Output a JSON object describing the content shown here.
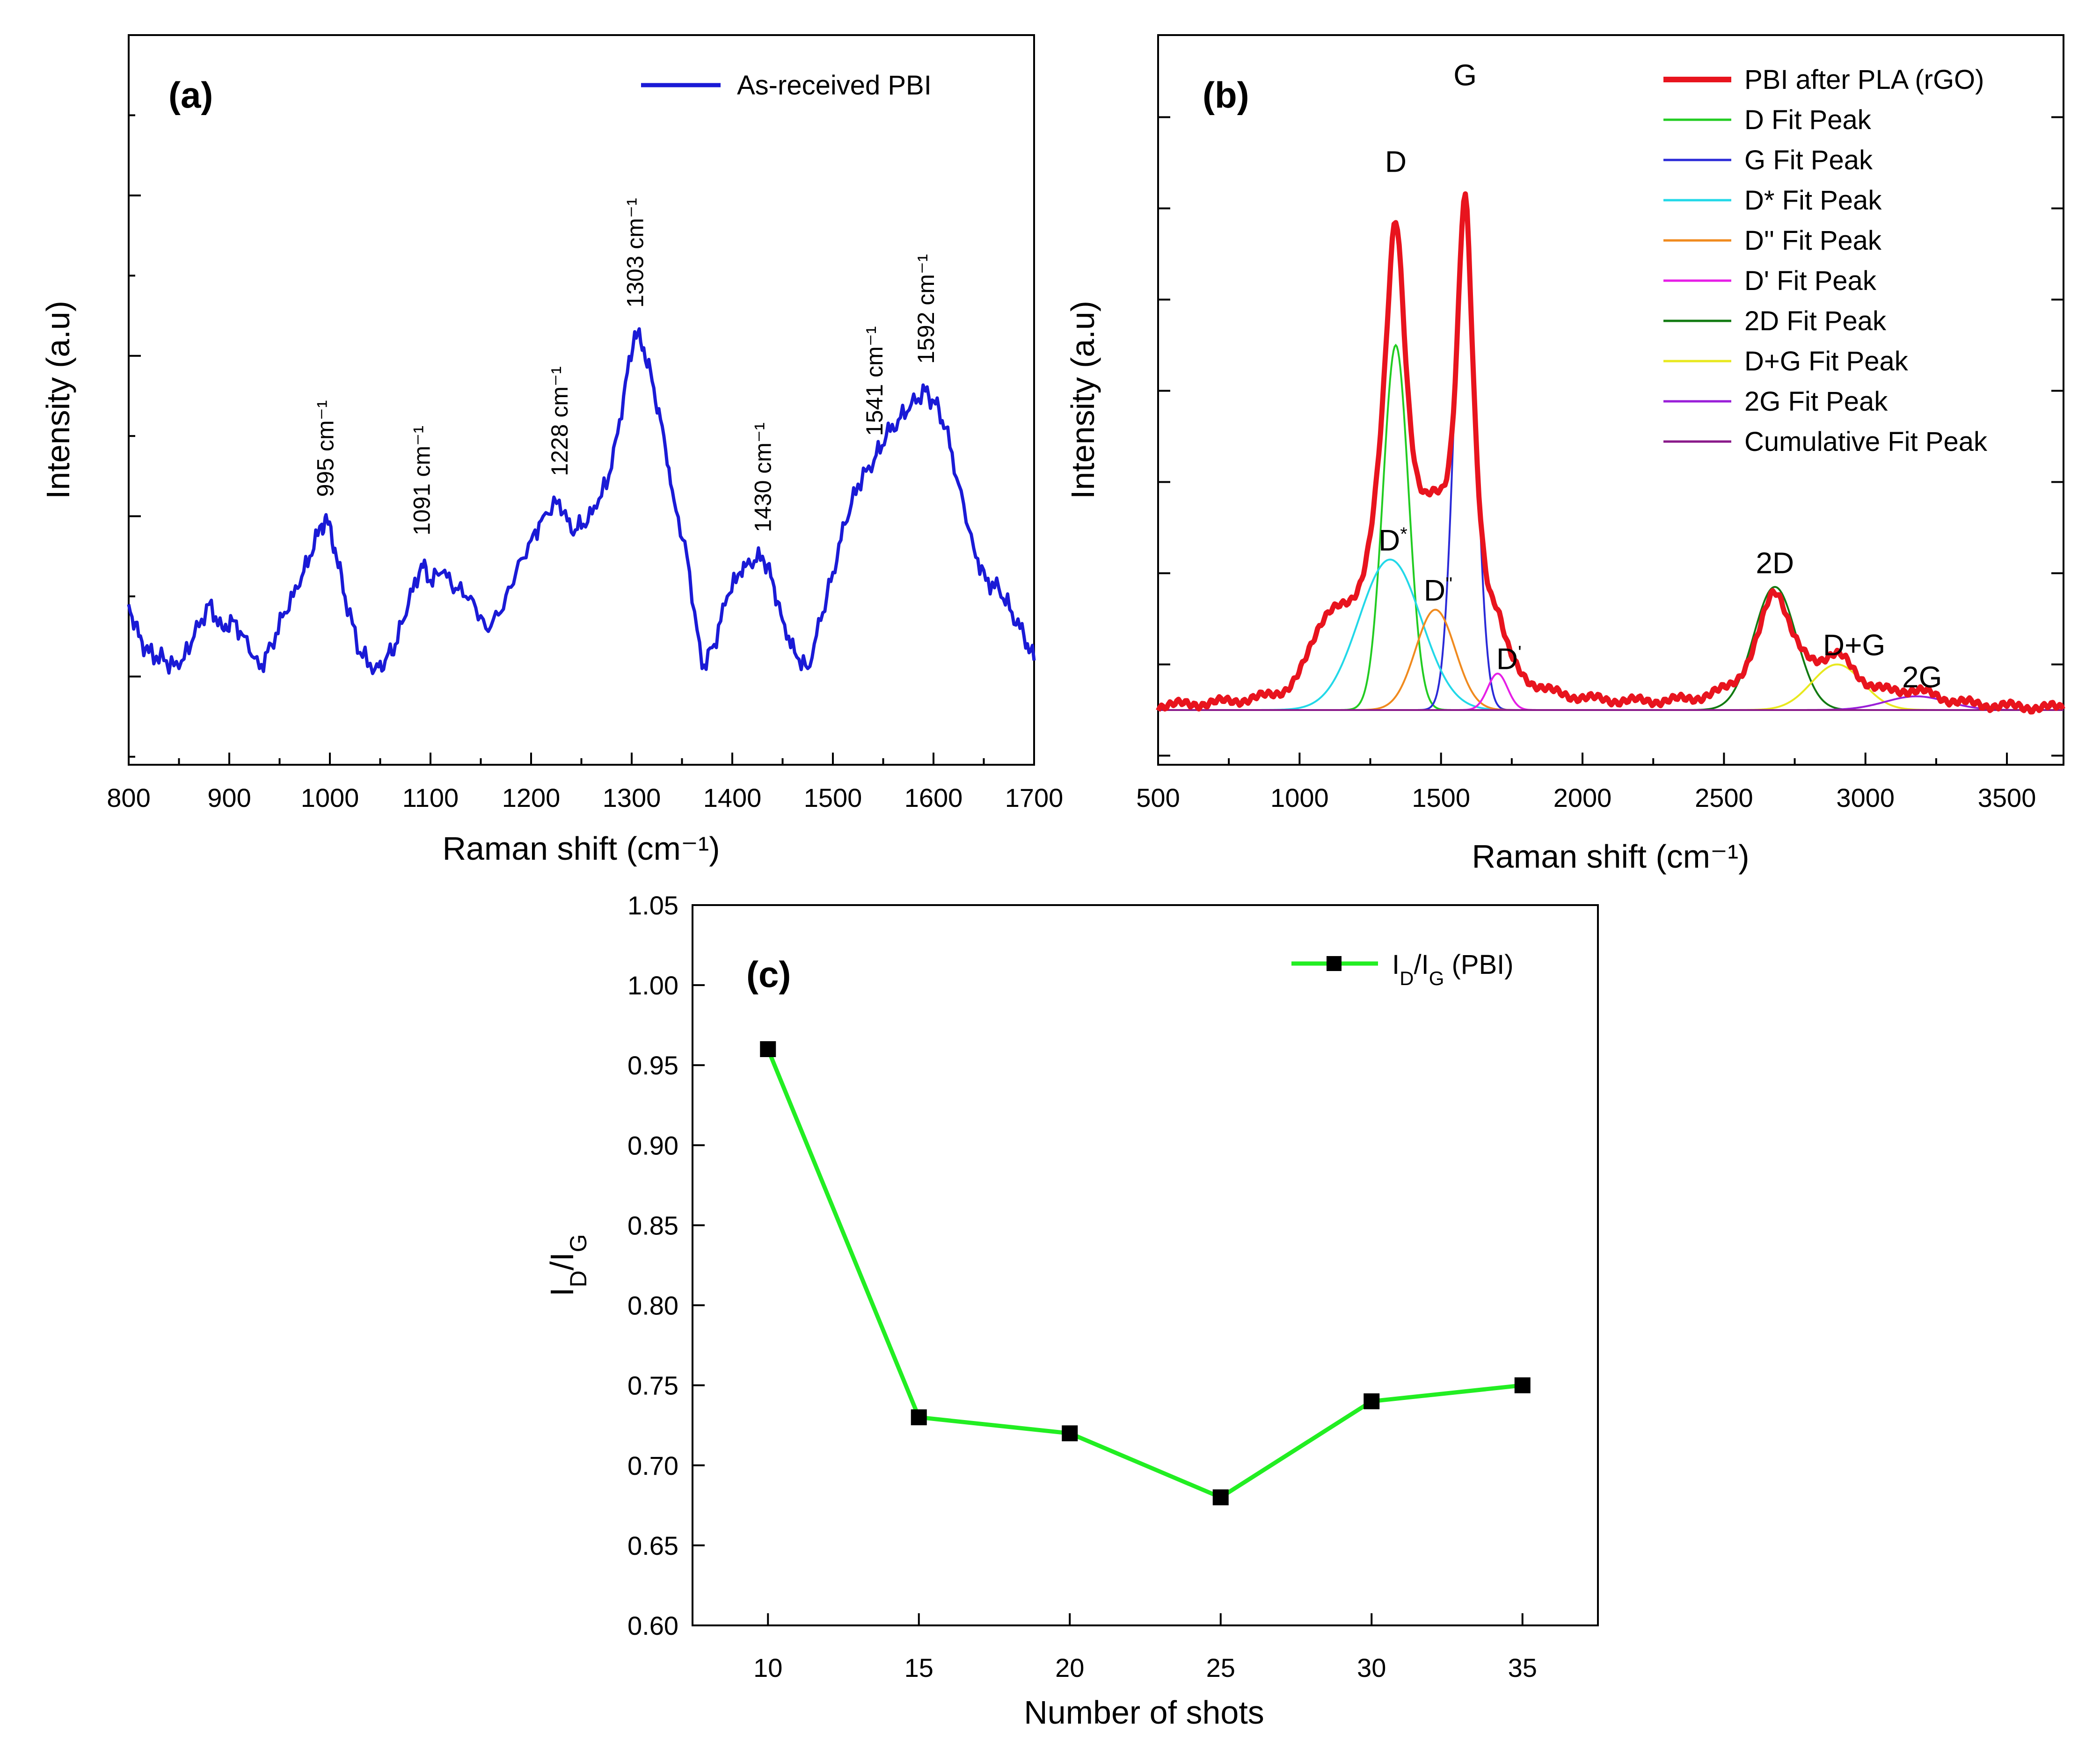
{
  "figure": {
    "panels": [
      "(a)",
      "(b)",
      "(c)"
    ]
  },
  "chart_data": [
    {
      "id": "a",
      "type": "line",
      "panel_label": "(a)",
      "title": "",
      "xlabel": "Raman shift (cm⁻¹)",
      "ylabel": "Intensity (a.u)",
      "xlim": [
        800,
        1700
      ],
      "ylim": [
        -0.55,
        4.0
      ],
      "xticks": [
        800,
        900,
        1000,
        1100,
        1200,
        1300,
        1400,
        1500,
        1600,
        1700
      ],
      "yticks_unlabeled": true,
      "grid": false,
      "legend_position": "top-right",
      "series": [
        {
          "name": "As-received PBI",
          "color": "#1a1ad6",
          "x": [
            800,
            810,
            820,
            835,
            850,
            865,
            880,
            893,
            903,
            915,
            930,
            942,
            955,
            968,
            980,
            992,
            997,
            1005,
            1015,
            1030,
            1045,
            1055,
            1065,
            1078,
            1091,
            1100,
            1112,
            1125,
            1140,
            1155,
            1170,
            1185,
            1200,
            1212,
            1228,
            1240,
            1252,
            1265,
            1280,
            1292,
            1303,
            1312,
            1322,
            1332,
            1342,
            1355,
            1370,
            1382,
            1395,
            1408,
            1418,
            1430,
            1440,
            1450,
            1462,
            1475,
            1488,
            1500,
            1512,
            1525,
            1541,
            1553,
            1565,
            1578,
            1592,
            1602,
            1612,
            1625,
            1640,
            1652,
            1665,
            1678,
            1690,
            1700
          ],
          "y": [
            0.45,
            0.25,
            0.15,
            0.1,
            0.05,
            0.25,
            0.45,
            0.3,
            0.35,
            0.25,
            0.05,
            0.2,
            0.4,
            0.55,
            0.75,
            0.95,
            0.98,
            0.8,
            0.5,
            0.15,
            0.05,
            0.1,
            0.2,
            0.45,
            0.7,
            0.6,
            0.65,
            0.55,
            0.5,
            0.3,
            0.4,
            0.65,
            0.85,
            1.0,
            1.1,
            0.9,
            0.95,
            1.05,
            1.3,
            1.75,
            2.15,
            2.05,
            1.8,
            1.5,
            1.1,
            0.75,
            0.05,
            0.2,
            0.5,
            0.65,
            0.7,
            0.75,
            0.6,
            0.35,
            0.15,
            0.05,
            0.35,
            0.65,
            0.95,
            1.2,
            1.35,
            1.5,
            1.6,
            1.7,
            1.78,
            1.7,
            1.55,
            1.2,
            0.8,
            0.6,
            0.55,
            0.4,
            0.25,
            0.1
          ]
        }
      ],
      "annotations": [
        {
          "text": "995 cm⁻¹",
          "x": 995,
          "y": 1.12
        },
        {
          "text": "1091 cm⁻¹",
          "x": 1091,
          "y": 0.88
        },
        {
          "text": "1228 cm⁻¹",
          "x": 1228,
          "y": 1.25
        },
        {
          "text": "1303 cm⁻¹",
          "x": 1303,
          "y": 2.3
        },
        {
          "text": "1430 cm⁻¹",
          "x": 1430,
          "y": 0.9
        },
        {
          "text": "1541 cm⁻¹",
          "x": 1541,
          "y": 1.5
        },
        {
          "text": "1592 cm⁻¹",
          "x": 1592,
          "y": 1.95
        }
      ]
    },
    {
      "id": "b",
      "type": "line",
      "panel_label": "(b)",
      "title": "",
      "xlabel": "Raman shift (cm⁻¹)",
      "ylabel": "Intensity (a.u)",
      "xlim": [
        500,
        3700
      ],
      "ylim": [
        -0.12,
        1.48
      ],
      "xticks": [
        500,
        1000,
        1500,
        2000,
        2500,
        3000,
        3500
      ],
      "yticks_unlabeled": true,
      "grid": false,
      "legend_position": "top-right",
      "series": [
        {
          "name": "PBI after PLA (rGO)",
          "color": "#e8141e",
          "role": "measured"
        },
        {
          "name": "D Fit Peak",
          "color": "#22cc22",
          "center": 1340,
          "amplitude": 0.8,
          "width": 45
        },
        {
          "name": "G Fit Peak",
          "color": "#2a2ad8",
          "center": 1585,
          "amplitude": 1.1,
          "width": 38
        },
        {
          "name": "D* Fit Peak",
          "color": "#22d8e8",
          "center": 1320,
          "amplitude": 0.33,
          "width": 110
        },
        {
          "name": "D'' Fit Peak",
          "color": "#f08a1e",
          "center": 1480,
          "amplitude": 0.22,
          "width": 70
        },
        {
          "name": "D' Fit Peak",
          "color": "#e61ee6",
          "center": 1700,
          "amplitude": 0.08,
          "width": 35
        },
        {
          "name": "2D Fit Peak",
          "color": "#117a11",
          "center": 2680,
          "amplitude": 0.27,
          "width": 75
        },
        {
          "name": "D+G Fit Peak",
          "color": "#e8e81e",
          "center": 2900,
          "amplitude": 0.1,
          "width": 90
        },
        {
          "name": "2G Fit Peak",
          "color": "#9a1ed8",
          "center": 3180,
          "amplitude": 0.03,
          "width": 110
        },
        {
          "name": "Cumulative Fit Peak",
          "color": "#8a1a8a",
          "role": "cumulative"
        }
      ],
      "measured_extra": {
        "center": 1100,
        "amplitude": 0.12,
        "width": 60
      },
      "annotations": [
        {
          "text": "D",
          "x": 1340,
          "y": 1.18
        },
        {
          "text": "G",
          "x": 1585,
          "y": 1.37
        },
        {
          "text": "D",
          "sup": "*",
          "x": 1330,
          "y": 0.35
        },
        {
          "text": "D",
          "sup": "''",
          "x": 1490,
          "y": 0.24
        },
        {
          "text": "D",
          "sup": "'",
          "x": 1740,
          "y": 0.09
        },
        {
          "text": "2D",
          "x": 2680,
          "y": 0.3
        },
        {
          "text": "D+G",
          "x": 2960,
          "y": 0.12
        },
        {
          "text": "2G",
          "x": 3200,
          "y": 0.05
        }
      ]
    },
    {
      "id": "c",
      "type": "line",
      "panel_label": "(c)",
      "title": "",
      "xlabel": "Number of shots",
      "ylabel": "ID/IG",
      "xlim": [
        7.5,
        37.5
      ],
      "ylim": [
        0.6,
        1.05
      ],
      "xticks": [
        10,
        15,
        20,
        25,
        30,
        35
      ],
      "yticks": [
        0.6,
        0.65,
        0.7,
        0.75,
        0.8,
        0.85,
        0.9,
        0.95,
        1.0,
        1.05
      ],
      "grid": false,
      "legend_position": "top-right",
      "series": [
        {
          "name": "ID/IG (PBI)",
          "color": "#22ee22",
          "marker": "square",
          "x": [
            10,
            15,
            20,
            25,
            30,
            35
          ],
          "y": [
            0.96,
            0.73,
            0.72,
            0.68,
            0.74,
            0.75
          ]
        }
      ]
    }
  ]
}
